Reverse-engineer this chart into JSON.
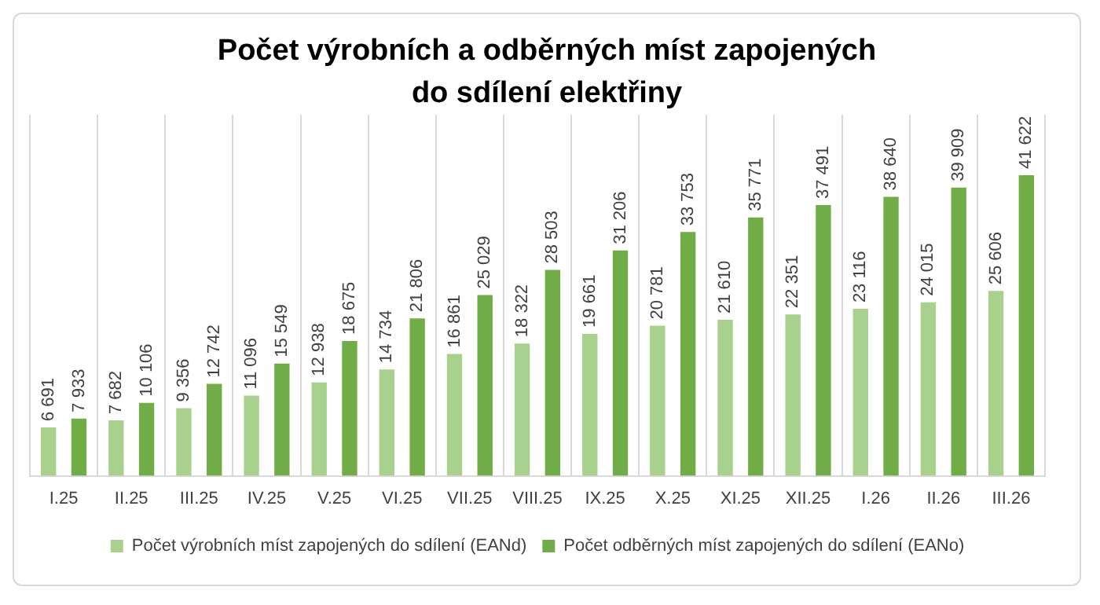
{
  "chart_data": {
    "type": "bar",
    "title": "Počet výrobních a odběrných míst zapojených do sdílení elektřiny",
    "categories": [
      "I.25",
      "II.25",
      "III.25",
      "IV.25",
      "V.25",
      "VI.25",
      "VII.25",
      "VIII.25",
      "IX.25",
      "X.25",
      "XI.25",
      "XII.25",
      "I.26",
      "II.26",
      "III.26"
    ],
    "series": [
      {
        "name": "Počet výrobních míst zapojených do sdílení (EANd)",
        "color": "#a9d18e",
        "values": [
          6691,
          7682,
          9356,
          11096,
          12938,
          14734,
          16861,
          18322,
          19661,
          20781,
          21610,
          22351,
          23116,
          24015,
          25606
        ],
        "value_labels": [
          "6 691",
          "7 682",
          "9 356",
          "11 096",
          "12 938",
          "14 734",
          "16 861",
          "18 322",
          "19 661",
          "20 781",
          "21 610",
          "22 351",
          "23 116",
          "24 015",
          "25 606"
        ]
      },
      {
        "name": "Počet odběrných míst zapojených do sdílení (EANo)",
        "color": "#70ad47",
        "values": [
          7933,
          10106,
          12742,
          15549,
          18675,
          21806,
          25029,
          28503,
          31206,
          33753,
          35771,
          37491,
          38640,
          39909,
          41622
        ],
        "value_labels": [
          "7 933",
          "10 106",
          "12 742",
          "15 549",
          "18 675",
          "21 806",
          "25 029",
          "28 503",
          "31 206",
          "33 753",
          "35 771",
          "37 491",
          "38 640",
          "39 909",
          "41 622"
        ]
      }
    ],
    "grid": "x",
    "legend": "bottom"
  }
}
